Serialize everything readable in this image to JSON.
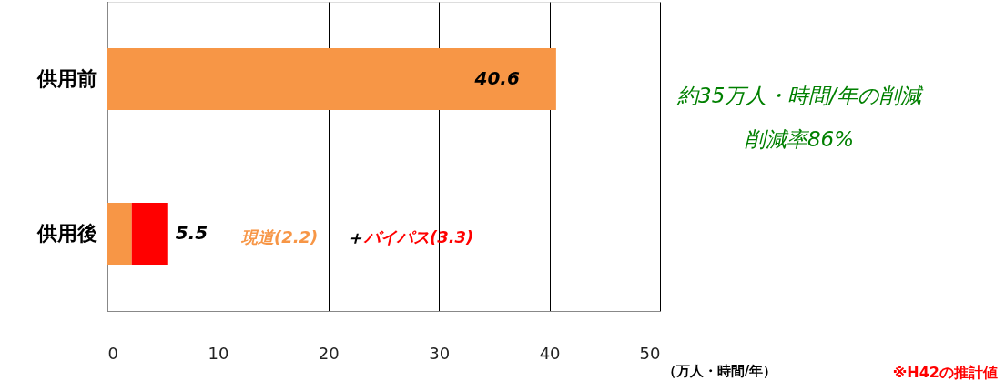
{
  "chart_data": {
    "type": "bar",
    "orientation": "horizontal",
    "stacked": true,
    "categories": [
      "供用前",
      "供用後"
    ],
    "series": [
      {
        "color": "#f79646",
        "values": [
          40.6,
          2.2
        ]
      },
      {
        "color": "#ff0000",
        "values": [
          null,
          3.3
        ]
      }
    ],
    "xlim": [
      0,
      50
    ],
    "xticks": [
      0,
      10,
      20,
      30,
      40,
      50
    ],
    "xlabel": "（万人・時間/年）",
    "grid": "x",
    "legend": false,
    "totals": [
      "40.6",
      "5.5"
    ],
    "annotations": [
      "約35万人・時間/年の削減",
      "削減率86%",
      "現道(2.2)",
      "＋",
      "バイパス(3.3)",
      "※H42の推計値"
    ]
  }
}
